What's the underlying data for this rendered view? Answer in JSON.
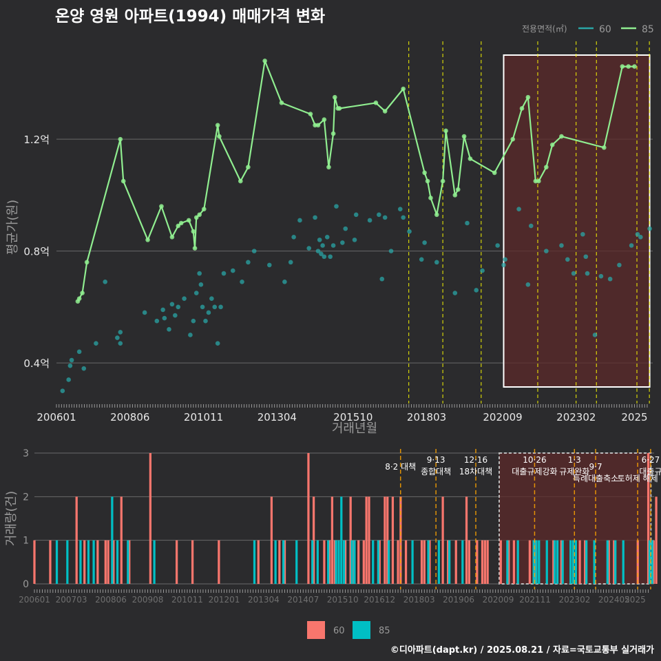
{
  "title": "온양 영원 아파트(1994) 매매가격 변화",
  "footer": "©디아파트(dapt.kr) / 2025.08.21 / 자료=국토교통부 실거래가",
  "colors": {
    "background": "#2b2b2d",
    "grid": "#6a6a6a",
    "s60": "#2aa6a6",
    "s85": "#90ee90",
    "bar60": "#f8766d",
    "bar85": "#00bfc4",
    "policy": "#ffff00",
    "highlight": "#5c2a2a"
  },
  "chart_data": [
    {
      "type": "line",
      "xlabel": "거래년월",
      "ylabel": "평균가(원)",
      "x_ticks": [
        "200601",
        "200806",
        "201011",
        "201304",
        "201510",
        "201803",
        "202009",
        "202302",
        "2025"
      ],
      "y_ticks": [
        "0.4억",
        "0.8억",
        "1.2억"
      ],
      "ylim": [
        0.25,
        1.55
      ],
      "xlim": [
        2006.0,
        2025.6
      ],
      "legend_title": "전용면적(㎡)",
      "legend_position": "top-right",
      "highlight_range": [
        2020.7,
        2025.5
      ],
      "policy_dates": [
        2017.58,
        2018.7,
        2019.96,
        2021.82,
        2023.08,
        2023.75,
        2025.08,
        2025.49
      ],
      "series": [
        {
          "name": "60",
          "x": [
            2006.2,
            2006.4,
            2006.45,
            2006.5,
            2006.75,
            2006.9,
            2007.3,
            2007.6,
            2008.0,
            2008.1,
            2008.1,
            2008.9,
            2009.3,
            2009.5,
            2009.55,
            2009.7,
            2009.8,
            2009.9,
            2010.0,
            2010.2,
            2010.4,
            2010.5,
            2010.6,
            2010.7,
            2010.75,
            2010.8,
            2010.9,
            2011.0,
            2011.1,
            2011.2,
            2011.3,
            2011.4,
            2011.5,
            2011.8,
            2012.1,
            2012.3,
            2012.5,
            2013.0,
            2013.5,
            2013.7,
            2013.8,
            2014.0,
            2014.3,
            2014.5,
            2014.6,
            2014.65,
            2014.7,
            2014.75,
            2014.8,
            2014.9,
            2015.0,
            2015.1,
            2015.2,
            2015.4,
            2015.5,
            2015.8,
            2015.85,
            2016.3,
            2016.6,
            2016.7,
            2016.8,
            2017.0,
            2017.3,
            2017.4,
            2017.6,
            2018.0,
            2018.1,
            2018.5,
            2019.1,
            2019.5,
            2019.8,
            2020.0,
            2020.5,
            2020.7,
            2020.75,
            2021.2,
            2021.5,
            2021.6,
            2022.1,
            2022.6,
            2022.8,
            2023.0,
            2023.3,
            2023.4,
            2023.45,
            2023.7,
            2023.9,
            2024.2,
            2024.5,
            2024.9,
            2025.1,
            2025.2,
            2025.5
          ],
          "y": [
            0.3,
            0.34,
            0.39,
            0.41,
            0.44,
            0.38,
            0.47,
            0.69,
            0.49,
            0.51,
            0.47,
            0.58,
            0.55,
            0.59,
            0.56,
            0.52,
            0.61,
            0.57,
            0.6,
            0.63,
            0.5,
            0.55,
            0.65,
            0.72,
            0.68,
            0.6,
            0.55,
            0.58,
            0.63,
            0.6,
            0.47,
            0.6,
            0.72,
            0.73,
            0.69,
            0.76,
            0.8,
            0.75,
            0.69,
            0.76,
            0.85,
            0.91,
            0.81,
            0.92,
            0.8,
            0.84,
            0.79,
            0.82,
            0.78,
            0.85,
            0.78,
            0.82,
            0.96,
            0.83,
            0.88,
            0.84,
            0.93,
            0.91,
            0.93,
            0.7,
            0.92,
            0.8,
            0.95,
            0.92,
            0.87,
            0.77,
            0.83,
            0.76,
            0.65,
            0.9,
            0.66,
            0.73,
            0.82,
            0.75,
            0.77,
            0.95,
            0.68,
            0.89,
            0.8,
            0.82,
            0.77,
            0.72,
            0.86,
            0.78,
            0.72,
            0.5,
            0.71,
            0.7,
            0.75,
            0.82,
            0.86,
            0.85,
            0.88
          ]
        },
        {
          "name": "85",
          "x": [
            2006.7,
            2006.75,
            2006.85,
            2007.0,
            2008.1,
            2008.2,
            2009.0,
            2009.45,
            2009.8,
            2010.0,
            2010.1,
            2010.35,
            2010.5,
            2010.55,
            2010.6,
            2010.7,
            2010.85,
            2011.3,
            2011.35,
            2012.05,
            2012.3,
            2012.85,
            2013.4,
            2014.35,
            2014.5,
            2014.6,
            2014.8,
            2014.95,
            2015.1,
            2015.15,
            2015.25,
            2015.3,
            2016.5,
            2016.8,
            2017.4,
            2018.1,
            2018.2,
            2018.3,
            2018.5,
            2018.7,
            2018.8,
            2019.1,
            2019.2,
            2019.4,
            2019.6,
            2020.4,
            2021.0,
            2021.3,
            2021.5,
            2021.75,
            2021.85,
            2022.1,
            2022.3,
            2022.6,
            2024.0,
            2024.6,
            2024.8,
            2025.0
          ],
          "y": [
            0.62,
            0.63,
            0.65,
            0.76,
            1.2,
            1.05,
            0.84,
            0.96,
            0.85,
            0.89,
            0.9,
            0.91,
            0.87,
            0.81,
            0.92,
            0.93,
            0.95,
            1.25,
            1.21,
            1.05,
            1.1,
            1.48,
            1.33,
            1.29,
            1.25,
            1.25,
            1.27,
            1.1,
            1.22,
            1.35,
            1.31,
            1.31,
            1.33,
            1.3,
            1.38,
            1.08,
            1.05,
            0.99,
            0.93,
            1.05,
            1.23,
            1.0,
            1.02,
            1.21,
            1.13,
            1.08,
            1.2,
            1.31,
            1.35,
            1.05,
            1.05,
            1.1,
            1.18,
            1.21,
            1.17,
            1.46,
            1.46,
            1.46
          ]
        }
      ]
    },
    {
      "type": "bar",
      "ylabel": "거래량(건)",
      "x_ticks": [
        "200601",
        "200703",
        "200806",
        "200908",
        "201011",
        "201201",
        "201304",
        "201407",
        "201510",
        "201612",
        "201803",
        "201906",
        "202009",
        "202111",
        "202302",
        "202405",
        "2025"
      ],
      "y_ticks": [
        "0",
        "1",
        "2",
        "3"
      ],
      "ylim": [
        0,
        3.2
      ],
      "xlim": [
        2006.0,
        2025.6
      ],
      "highlight_range": [
        2020.7,
        2025.5
      ],
      "legend_position": "bottom",
      "policy_dates": [
        2017.58,
        2018.7,
        2019.96,
        2021.82,
        2023.08,
        2023.75,
        2025.08,
        2025.49
      ],
      "policy_labels": [
        {
          "at": 2017.58,
          "lines": [
            "8·2 대책"
          ],
          "row": 1
        },
        {
          "at": 2018.7,
          "lines": [
            "9·13",
            "종합대책"
          ],
          "row": 0
        },
        {
          "at": 2019.96,
          "lines": [
            "12·16",
            "18차대책"
          ],
          "row": 0
        },
        {
          "at": 2021.82,
          "lines": [
            "10·26",
            "대출규제강화"
          ],
          "row": 0
        },
        {
          "at": 2023.08,
          "lines": [
            "1·3",
            "규제완화"
          ],
          "row": 0
        },
        {
          "at": 2023.75,
          "lines": [
            "9·7",
            "특례대출축소"
          ],
          "row": 1
        },
        {
          "at": 2025.08,
          "lines": [
            "",
            "토허제 해제"
          ],
          "row": 1
        },
        {
          "at": 2025.49,
          "lines": [
            "6·27",
            "대출규"
          ],
          "row": 0
        }
      ],
      "series": [
        {
          "name": "60",
          "values_by_month": "1,0,0,0,0,0,1,0,0,0,0,0,0,0,0,0,2,0,0,1,0,0,0,0,1,0,0,1,1,0,1,0,0,2,0,0,1,0,0,0,0,0,0,0,3,0,0,0,0,0,0,0,0,0,1,0,0,0,0,0,1,0,0,0,0,0,0,0,0,0,1,0,0,0,0,0,0,0,0,0,0,0,0,0,0,1,0,0,0,0,2,0,0,1,0,1,0,0,0,0,0,0,0,0,3,0,2,0,0,0,1,0,1,2,1,0,0,0,1,0,2,1,0,1,0,1,2,2,0,0,0,1,0,2,2,0,2,0,1,2,0,1,0,0,0,0,0,1,1,0,1,0,0,0,0,2,0,1,0,0,1,0,0,0,2,1,0,0,1,0,1,1,1,0,0,0,0,1,0,0,1,0,1,0,0,0,0,0,1,0,1,0,0,0,0,0,0,1,0,0,1,0,0,0,0,0,0,1,0,1,0,0,0,0,0,0,0,0,1,0,1,0,0,0,0,0,0,0,0,1,0,0,0,3,0,1,2,0,0,0,0,0,2,0,0,1,0,0,0,1,0,0,1,0,0,2,1,0,0,0,0,0,3,1,0,0,0,0,0,0,0,0,0,1,0,0,0,0,0,0,0,0,0,2,0,0,2,0,0,0,0,1,0,1,0,1,0,0,0,0,0,0,0,0,0,0,0,0,0,0,0,0,1,0,0,0,0,0,0,0,0,0,0,0,0,0,0,0,1,0,0,1,0,0,0,0,0,0,0,0,1,0,0,0,1,0,0,0,1,0,1,0,0,0,0,0,0,0,0,0,0,0,0,0,1,0,0,0,0,0,0,0,0,1,0,2,0,0,1,0,0,2,0,0,0,0,1,0,0,0,0,0,0,0,0,0,1,0,0,0,0,0,0,0,2,0,0,1,0,2,0,1"
        },
        {
          "name": "85",
          "values_by_month": "0,0,0,0,0,0,0,0,1,0,0,0,1,0,0,0,0,1,0,0,1,0,1,0,0,0,0,0,0,2,0,1,0,0,0,1,0,0,0,0,0,0,0,0,0,1,0,0,0,0,0,0,0,0,0,0,0,0,0,0,0,0,0,0,0,0,0,0,0,0,0,0,0,0,0,0,0,0,0,0,0,0,0,1,0,0,0,0,0,0,0,1,0,0,1,0,0,0,0,1,0,0,0,0,0,1,0,1,0,0,0,1,0,0,1,1,2,1,0,0,1,1,0,0,0,0,0,0,1,0,1,0,0,0,1,0,0,0,0,0,0,0,0,1,0,0,0,0,0,1,0,0,0,1,0,0,0,1,0,0,0,0,1,0,0,0,0,0,0,0,0,0,0,0,0,0,0,0,0,1,0,0,0,1,0,0,0,0,0,1,1,1,0,0,1,0,0,1,1,0,1,0,0,1,1,1,0,0,0,1,0,0,1,0,0,0,0,1,0,0,1,0,0,1,0,0,0,0,0,0,0,0,0,1,1,0,0,0,0,1,0,0,0,0,0,0,0,0,0,0,0,0,0,0,0,0,0,0,0,0,2,1,1,0,0,0,0,0,0,1,1,1,0,1,0,1,0,0,0,0,0,0,0,0,2,1,1,1,0,0,0,1,0,0,0,1,0,0,0,0,1,1,0,0,0,0,0,0,0,0,0,0,0,1,0,0,0,0,0,0,1,0,1,0,0,0,1,0,0,0,1,0,0,1,0,0,0,0,0,0,1,0,0,0,0,1,0,0,0,1,0,0,0,0,0,0,0,0,0,1,0,0,0,0,1,0,0,0,0,0,0,0,0,0,0,0,0,0,0,0,0,0,0,0,0,0,0,0,0,1,0,0,0,0,0,1,0,0,0,0,0,0,0,0,0,0,0,0,0,0,0,0,1"
        }
      ]
    }
  ]
}
